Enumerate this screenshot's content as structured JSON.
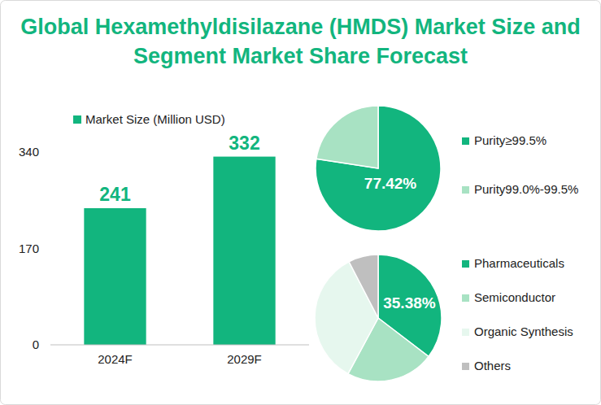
{
  "chart_data": [
    {
      "type": "bar",
      "title": "Global Hexamethyldisilazane (HMDS) Market Size and Segment Market Share Forecast",
      "categories": [
        "2024F",
        "2029F"
      ],
      "series": [
        {
          "name": "Market Size (Million USD)",
          "color": "#12b57e",
          "values": [
            241,
            332
          ]
        }
      ],
      "ylim": [
        0,
        340
      ],
      "yticks": [
        0,
        170,
        340
      ],
      "grid": false,
      "data_labels": true
    },
    {
      "type": "pie",
      "categories": [
        "Purity≥99.5%",
        "Purity99.0%-99.5%"
      ],
      "values": [
        77.42,
        22.58
      ],
      "value_labels": [
        "77.42%",
        null
      ],
      "colors": [
        "#12b57e",
        "#a8e2c3"
      ],
      "data_labels": true
    },
    {
      "type": "pie",
      "categories": [
        "Pharmaceuticals",
        "Semiconductor",
        "Organic Synthesis",
        "Others"
      ],
      "values": [
        35.38,
        22.5,
        34.5,
        7.62
      ],
      "value_labels": [
        "35.38%",
        null,
        null,
        null
      ],
      "colors": [
        "#12b57e",
        "#a8e2c3",
        "#e6f7ee",
        "#bfbfbf"
      ],
      "data_labels": true
    }
  ]
}
